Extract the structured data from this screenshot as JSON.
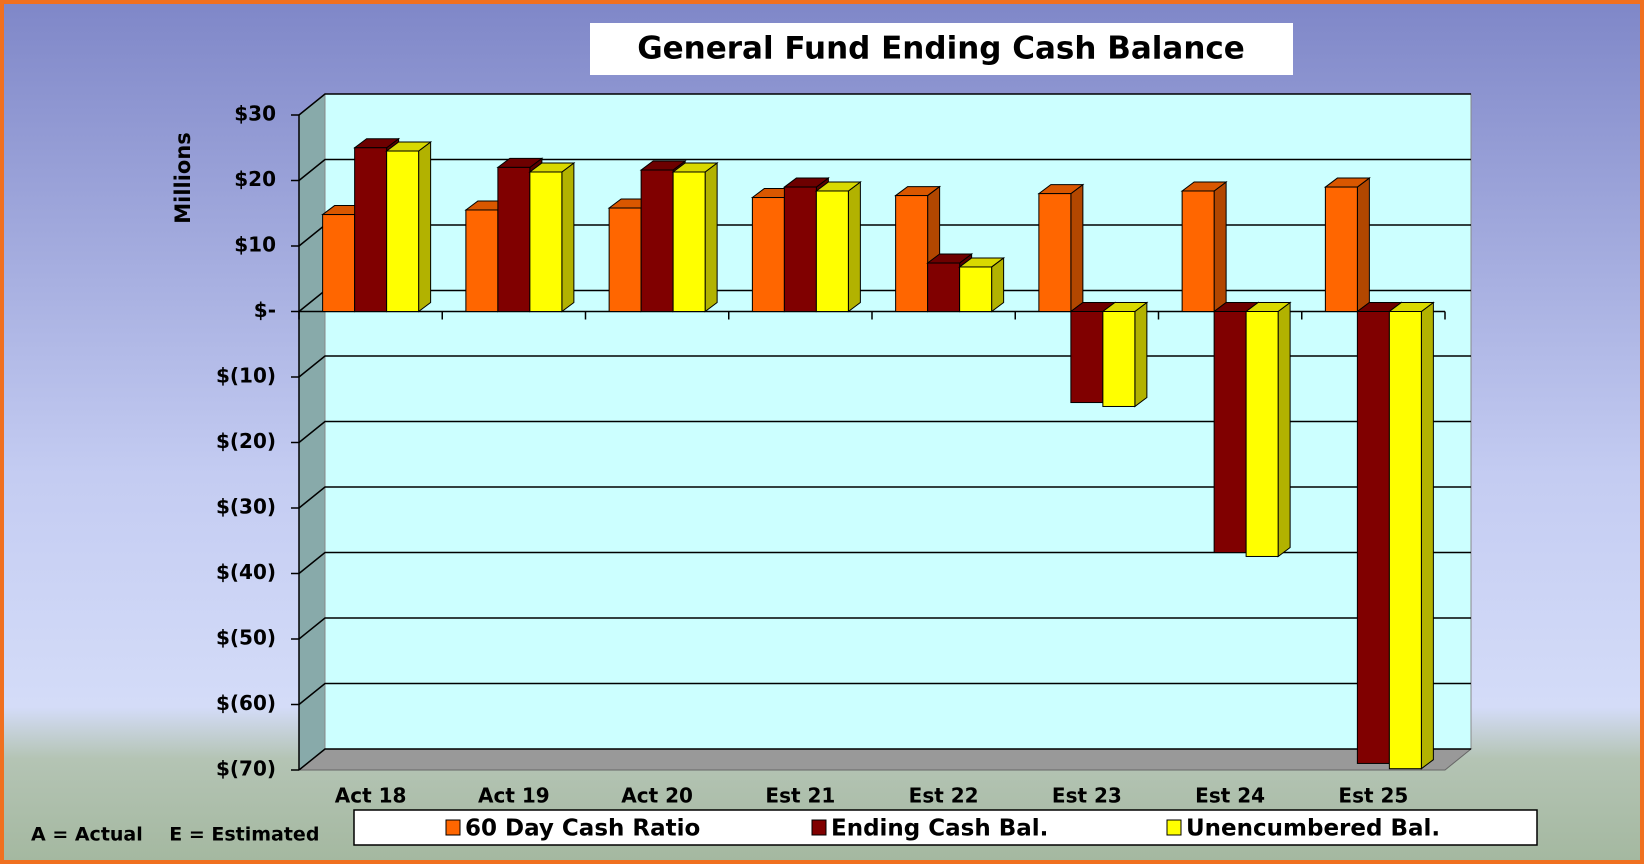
{
  "chart_data": {
    "type": "bar3d",
    "title": "General Fund Ending Cash Balance",
    "y_label": "Millions",
    "annotation": "A = Actual    E = Estimated",
    "categories": [
      "Act 18",
      "Act 19",
      "Act 20",
      "Est 21",
      "Est 22",
      "Est 23",
      "Est 24",
      "Est 25"
    ],
    "series": [
      {
        "name": "60 Day Cash Ratio",
        "color": "#ff6600",
        "values": [
          14.8,
          15.5,
          15.8,
          17.4,
          17.7,
          18,
          18.4,
          19
        ]
      },
      {
        "name": "Ending Cash Bal.",
        "color": "#800000",
        "values": [
          25,
          22,
          21.6,
          19,
          7.4,
          -13.9,
          -36.8,
          -69
        ]
      },
      {
        "name": "Unencumbered Bal.",
        "color": "#ffff00",
        "values": [
          24.5,
          21.3,
          21.3,
          18.4,
          6.8,
          -14.5,
          -37.4,
          -69.8
        ]
      }
    ],
    "ylim": [
      -70,
      30
    ],
    "yticks": [
      {
        "value": 30,
        "label": "$30"
      },
      {
        "value": 20,
        "label": "$20"
      },
      {
        "value": 10,
        "label": "$10"
      },
      {
        "value": 0,
        "label": "$-"
      },
      {
        "value": -10,
        "label": "$(10)"
      },
      {
        "value": -20,
        "label": "$(20)"
      },
      {
        "value": -30,
        "label": "$(30)"
      },
      {
        "value": -40,
        "label": "$(40)"
      },
      {
        "value": -50,
        "label": "$(50)"
      },
      {
        "value": -60,
        "label": "$(60)"
      },
      {
        "value": -70,
        "label": "$(70)"
      }
    ],
    "grid": true,
    "legend": "bottom"
  }
}
